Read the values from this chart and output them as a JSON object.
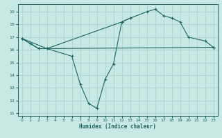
{
  "xlabel": "Humidex (Indice chaleur)",
  "background_color": "#c8e8e4",
  "grid_color": "#aad4d0",
  "line_color": "#1a6660",
  "xlim": [
    -0.5,
    23.5
  ],
  "ylim": [
    10.8,
    19.6
  ],
  "yticks": [
    11,
    12,
    13,
    14,
    15,
    16,
    17,
    18,
    19
  ],
  "xticks": [
    0,
    1,
    2,
    3,
    4,
    5,
    6,
    7,
    8,
    9,
    10,
    11,
    12,
    13,
    14,
    15,
    16,
    17,
    18,
    19,
    20,
    21,
    22,
    23
  ],
  "line1_x": [
    0,
    1,
    2,
    3,
    6,
    7,
    8,
    9,
    10,
    11,
    12,
    13
  ],
  "line1_y": [
    16.9,
    16.5,
    16.1,
    16.1,
    15.5,
    13.3,
    11.8,
    11.4,
    13.7,
    14.9,
    18.2,
    18.5
  ],
  "line2_x": [
    0,
    1,
    2,
    3,
    12,
    13,
    15,
    16,
    17,
    18,
    19,
    20,
    22,
    23
  ],
  "line2_y": [
    16.9,
    16.5,
    16.1,
    16.1,
    18.2,
    18.5,
    19.0,
    19.2,
    18.7,
    18.5,
    18.2,
    17.0,
    16.7,
    16.2
  ],
  "line3_x": [
    0,
    3,
    23
  ],
  "line3_y": [
    16.9,
    16.1,
    16.2
  ]
}
